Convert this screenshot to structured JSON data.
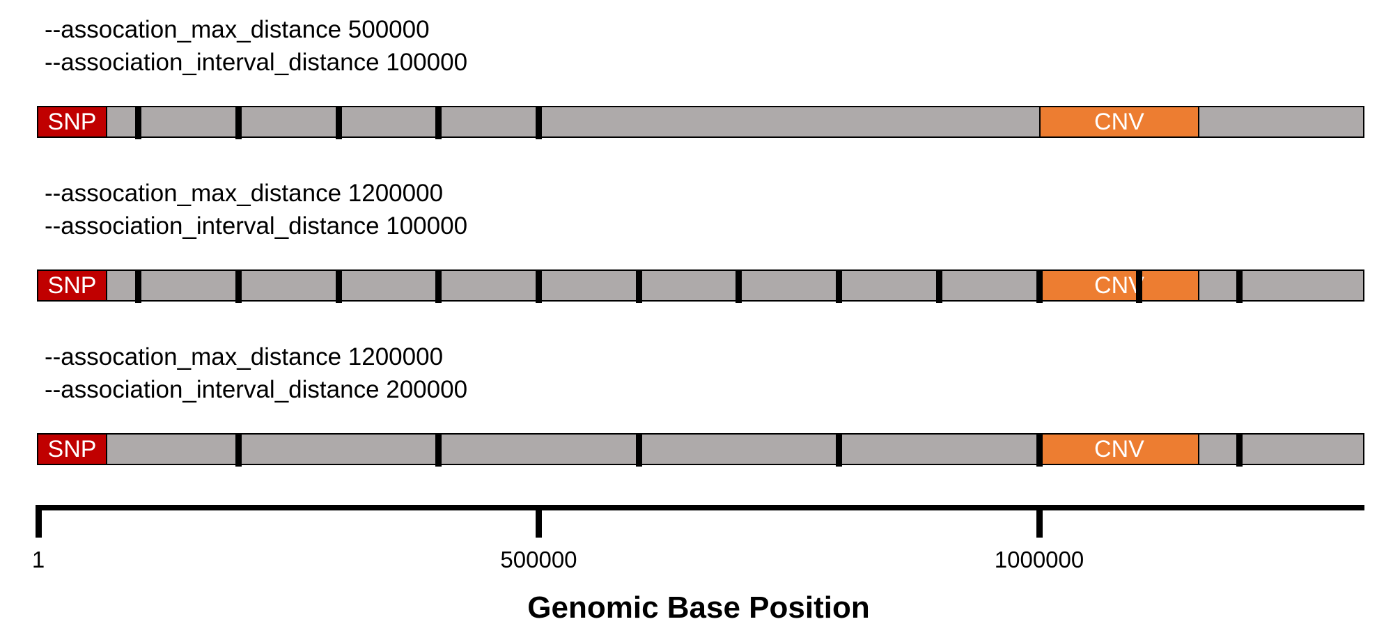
{
  "tracks": [
    {
      "param1": "--assocation_max_distance 500000",
      "param2": "--association_interval_distance 100000",
      "snp_label": "SNP",
      "cnv_label": "CNV",
      "snp_range": [
        1,
        65000
      ],
      "cnv_range": [
        1000000,
        1160000
      ],
      "cut_positions": [
        100000,
        200000,
        300000,
        400000,
        500000
      ]
    },
    {
      "param1": "--assocation_max_distance 1200000",
      "param2": "--association_interval_distance 100000",
      "snp_label": "SNP",
      "cnv_label": "CNV",
      "snp_range": [
        1,
        65000
      ],
      "cnv_range": [
        1000000,
        1160000
      ],
      "cut_positions": [
        100000,
        200000,
        300000,
        400000,
        500000,
        600000,
        700000,
        800000,
        900000,
        1000000,
        1100000,
        1200000
      ]
    },
    {
      "param1": "--assocation_max_distance 1200000",
      "param2": "--association_interval_distance 200000",
      "snp_label": "SNP",
      "cnv_label": "CNV",
      "snp_range": [
        1,
        65000
      ],
      "cnv_range": [
        1000000,
        1160000
      ],
      "cut_positions": [
        200000,
        400000,
        600000,
        800000,
        1000000,
        1200000
      ]
    }
  ],
  "axis": {
    "title": "Genomic Base Position",
    "ticks": [
      {
        "label": "1",
        "value": 1
      },
      {
        "label": "500000",
        "value": 500000
      },
      {
        "label": "1000000",
        "value": 1000000
      }
    ],
    "range": [
      1,
      1265000
    ]
  },
  "colors": {
    "snp": "#c00000",
    "cnv": "#ed7d31",
    "track": "#aeaaaa"
  }
}
